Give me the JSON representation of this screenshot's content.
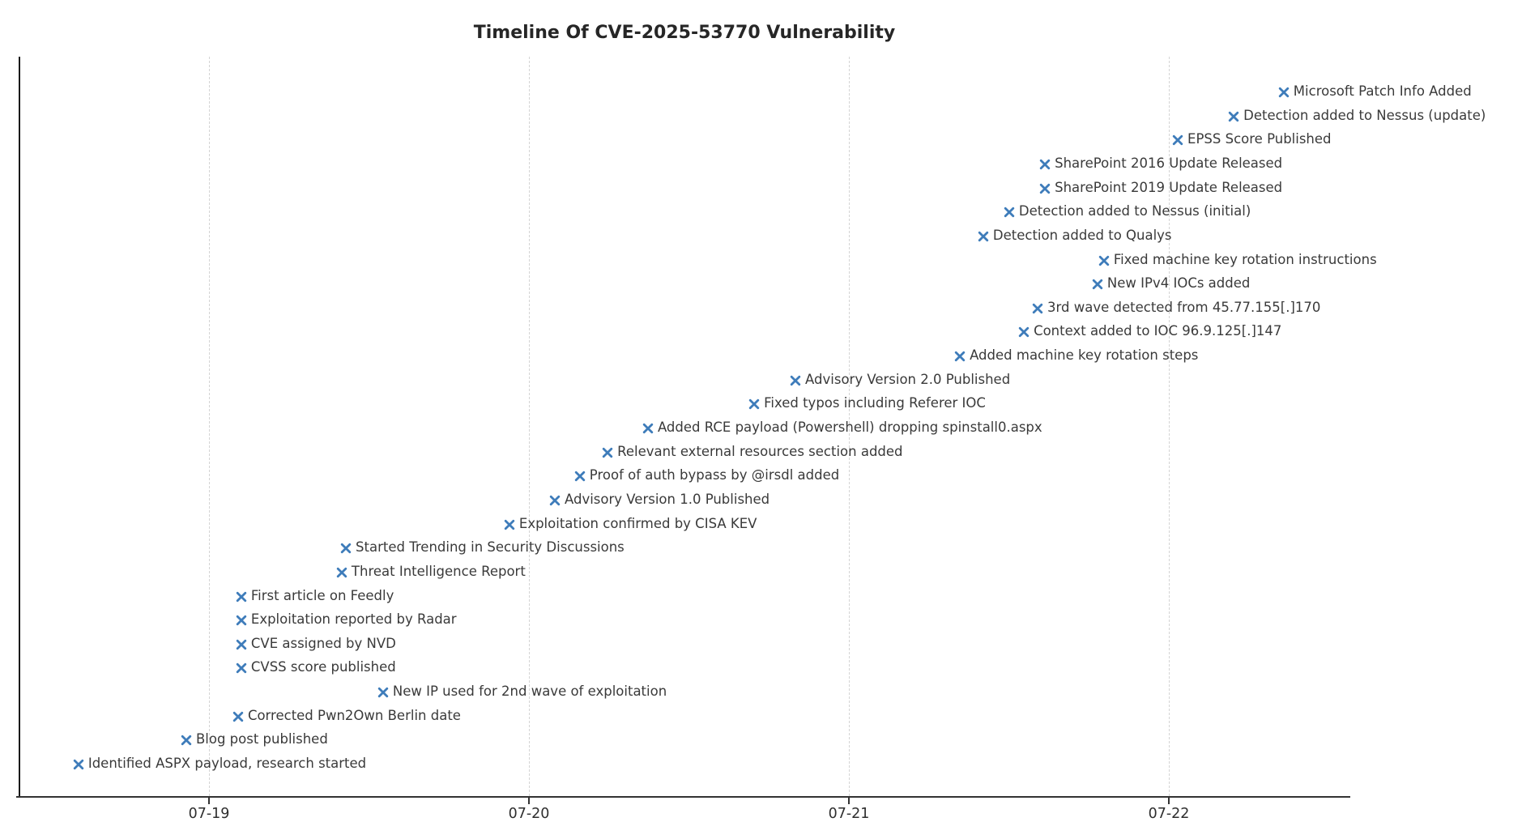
{
  "colors": {
    "marker": "#3e7cba",
    "label": "#3a3a3a",
    "title": "#262626",
    "grid": "#d4d4d4",
    "axis": "#333333"
  },
  "chart_data": {
    "type": "scatter",
    "title": "Timeline Of CVE-2025-53770 Vulnerability",
    "xlabel": "",
    "ylabel": "",
    "marker": "x",
    "grid": "vertical-dashed",
    "legend": "none",
    "x_unit": "days since 07-19 tick (fractional, estimated from marker positions)",
    "x_tick_labels": [
      "07-19",
      "07-20",
      "07-21",
      "07-22"
    ],
    "x_tick_days": [
      0,
      1,
      2,
      3
    ],
    "xlim_days": [
      -0.6,
      3.57
    ],
    "events": [
      {
        "row": 29,
        "x_day": 3.359,
        "label": "Microsoft Patch Info Added"
      },
      {
        "row": 28,
        "x_day": 3.203,
        "label": "Detection added to Nessus (update)"
      },
      {
        "row": 27,
        "x_day": 3.028,
        "label": "EPSS Score Published"
      },
      {
        "row": 26,
        "x_day": 2.613,
        "label": "SharePoint 2016 Update Released"
      },
      {
        "row": 25,
        "x_day": 2.613,
        "label": "SharePoint 2019 Update Released"
      },
      {
        "row": 24,
        "x_day": 2.501,
        "label": "Detection added to Nessus (initial)"
      },
      {
        "row": 23,
        "x_day": 2.42,
        "label": "Detection added to Qualys"
      },
      {
        "row": 22,
        "x_day": 2.797,
        "label": "Fixed machine key rotation instructions"
      },
      {
        "row": 21,
        "x_day": 2.777,
        "label": "New IPv4 IOCs added"
      },
      {
        "row": 20,
        "x_day": 2.59,
        "label": "3rd wave detected from 45.77.155[.]170"
      },
      {
        "row": 19,
        "x_day": 2.547,
        "label": "Context added to IOC 96.9.125[.]147"
      },
      {
        "row": 18,
        "x_day": 2.347,
        "label": "Added machine key rotation steps"
      },
      {
        "row": 17,
        "x_day": 1.833,
        "label": "Advisory Version 2.0 Published"
      },
      {
        "row": 16,
        "x_day": 1.704,
        "label": "Fixed typos including Referer IOC"
      },
      {
        "row": 15,
        "x_day": 1.372,
        "label": "Added RCE payload (Powershell) dropping spinstall0.aspx"
      },
      {
        "row": 14,
        "x_day": 1.246,
        "label": "Relevant external resources section added"
      },
      {
        "row": 13,
        "x_day": 1.159,
        "label": "Proof of auth bypass by @irsdl added"
      },
      {
        "row": 12,
        "x_day": 1.081,
        "label": "Advisory Version 1.0 Published"
      },
      {
        "row": 11,
        "x_day": 0.939,
        "label": "Exploitation confirmed by CISA KEV"
      },
      {
        "row": 10,
        "x_day": 0.428,
        "label": "Started Trending in Security Discussions"
      },
      {
        "row": 9,
        "x_day": 0.415,
        "label": "Threat Intelligence Report"
      },
      {
        "row": 8,
        "x_day": 0.101,
        "label": "First article on Feedly"
      },
      {
        "row": 7,
        "x_day": 0.101,
        "label": "Exploitation reported by Radar"
      },
      {
        "row": 6,
        "x_day": 0.101,
        "label": "CVE assigned by NVD"
      },
      {
        "row": 5,
        "x_day": 0.101,
        "label": "CVSS score published"
      },
      {
        "row": 4,
        "x_day": 0.544,
        "label": "New IP used for 2nd wave of exploitation"
      },
      {
        "row": 3,
        "x_day": 0.091,
        "label": "Corrected Pwn2Own Berlin date"
      },
      {
        "row": 2,
        "x_day": -0.071,
        "label": "Blog post published"
      },
      {
        "row": 1,
        "x_day": -0.408,
        "label": "Identified ASPX payload, research started"
      }
    ]
  }
}
